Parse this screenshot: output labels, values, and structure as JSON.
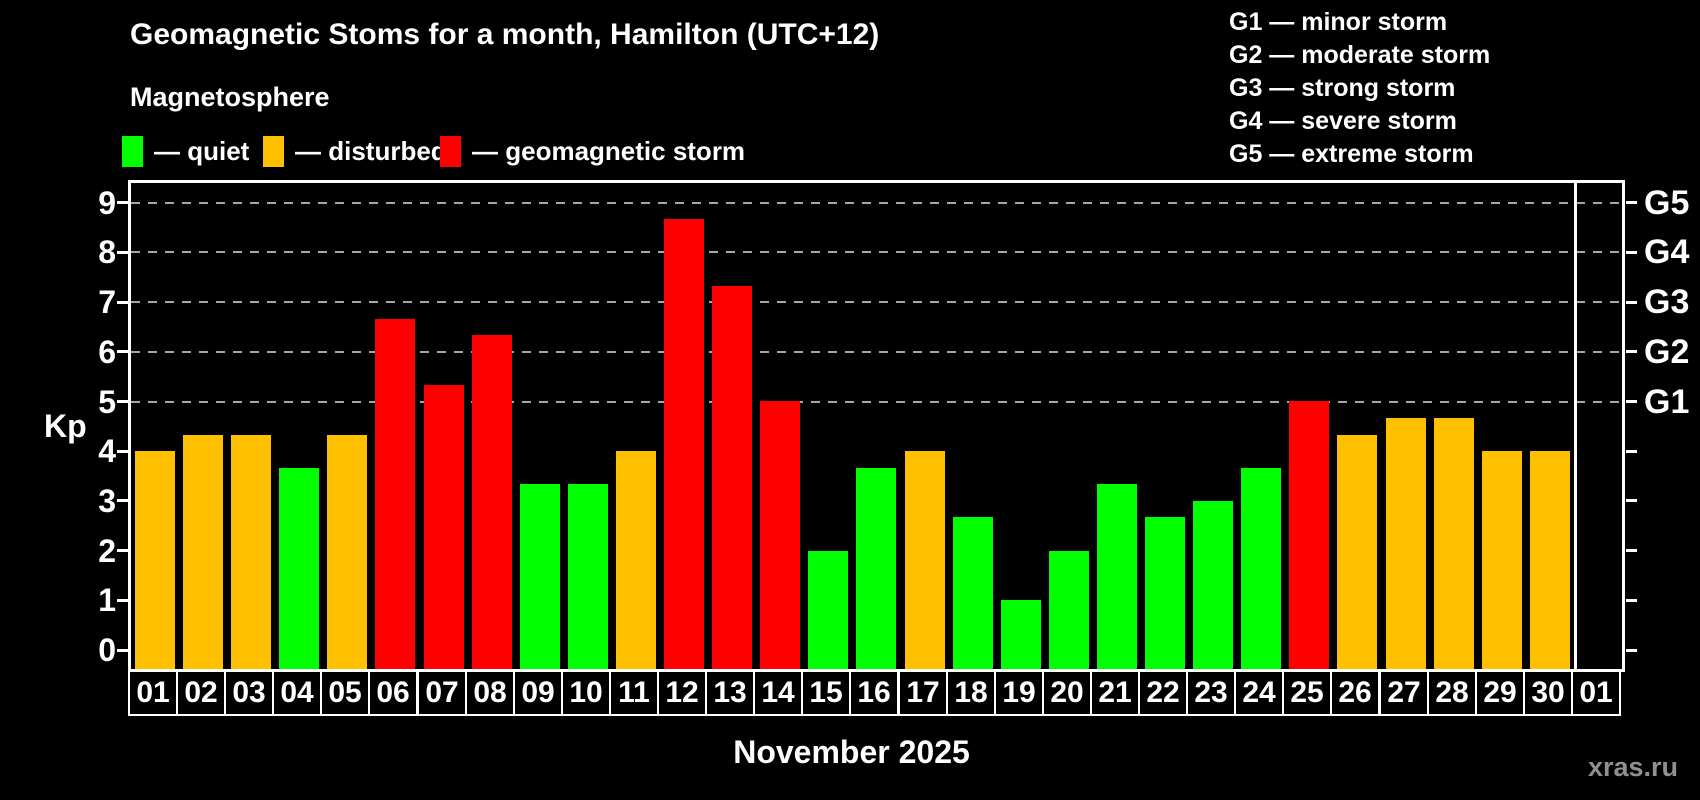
{
  "header": {
    "title": "Geomagnetic Stoms for a month, Hamilton (UTC+12)",
    "subtitle": "Magnetosphere"
  },
  "legend": {
    "items": [
      {
        "key": "quiet",
        "label": "— quiet",
        "color": "#00ff00"
      },
      {
        "key": "disturbed",
        "label": "— disturbed",
        "color": "#ffc000"
      },
      {
        "key": "storm",
        "label": "— geomagnetic storm",
        "color": "#ff0000"
      }
    ]
  },
  "g_scale_legend": {
    "lines": [
      "G1 — minor storm",
      "G2 — moderate storm",
      "G3 — strong storm",
      "G4 — severe storm",
      "G5 — extreme storm"
    ]
  },
  "watermark": "xras.ru",
  "chart_data": {
    "type": "bar",
    "title": "Geomagnetic Stoms for a month, Hamilton (UTC+12)",
    "xlabel": "November 2025",
    "ylabel": "Kp",
    "ylim": [
      0,
      9.4
    ],
    "yticks": [
      0,
      1,
      2,
      3,
      4,
      5,
      6,
      7,
      8,
      9
    ],
    "grid_levels": [
      5,
      6,
      7,
      8,
      9
    ],
    "grid_on": true,
    "legend_position": "top-left",
    "right_axis": [
      {
        "label": "G1",
        "kp": 5
      },
      {
        "label": "G2",
        "kp": 6
      },
      {
        "label": "G3",
        "kp": 7
      },
      {
        "label": "G4",
        "kp": 8
      },
      {
        "label": "G5",
        "kp": 9
      }
    ],
    "categories": [
      "01",
      "02",
      "03",
      "04",
      "05",
      "06",
      "07",
      "08",
      "09",
      "10",
      "11",
      "12",
      "13",
      "14",
      "15",
      "16",
      "17",
      "18",
      "19",
      "20",
      "21",
      "22",
      "23",
      "24",
      "25",
      "26",
      "27",
      "28",
      "29",
      "30",
      "01"
    ],
    "values": [
      4,
      4.33,
      4.33,
      3.67,
      4.33,
      6.67,
      5.33,
      6.33,
      3.33,
      3.33,
      4,
      8.67,
      7.33,
      5,
      2,
      3.67,
      4,
      2.67,
      1,
      2,
      3.33,
      2.67,
      3,
      3.67,
      5,
      4.33,
      4.67,
      4.67,
      4,
      4,
      null
    ],
    "statuses": [
      "disturbed",
      "disturbed",
      "disturbed",
      "quiet",
      "disturbed",
      "storm",
      "storm",
      "storm",
      "quiet",
      "quiet",
      "disturbed",
      "storm",
      "storm",
      "storm",
      "quiet",
      "quiet",
      "disturbed",
      "quiet",
      "quiet",
      "quiet",
      "quiet",
      "quiet",
      "quiet",
      "quiet",
      "storm",
      "disturbed",
      "disturbed",
      "disturbed",
      "disturbed",
      "disturbed",
      null
    ],
    "status_colors": {
      "quiet": "#00ff00",
      "disturbed": "#ffc000",
      "storm": "#ff0000"
    },
    "colors": {
      "background": "#000000",
      "frame": "#ffffff",
      "grid": "#a6a6a6",
      "text": "#ffffff",
      "watermark": "#909090"
    }
  }
}
